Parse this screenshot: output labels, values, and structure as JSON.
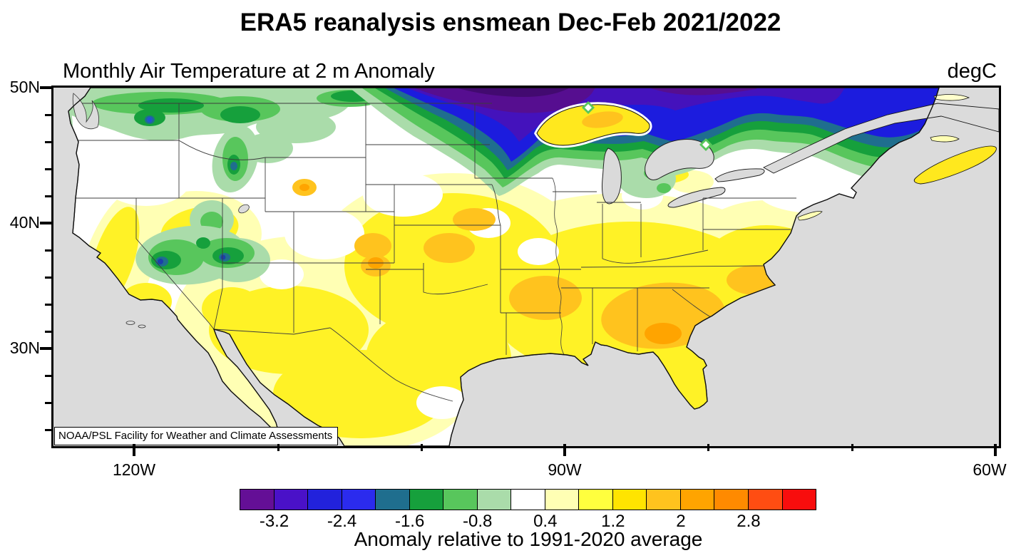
{
  "header": {
    "title": "ERA5 reanalysis ensmean Dec-Feb 2021/2022",
    "subtitle": "Monthly Air Temperature at 2 m Anomaly",
    "units": "degC"
  },
  "map": {
    "watermark": "NOAA/PSL Facility for Weather and Climate Assessments",
    "ocean_color": "#DBDBDB",
    "land_neutral_color": "#FFFFFF"
  },
  "axes": {
    "lat_ticks": [
      "50N",
      "40N",
      "30N"
    ],
    "lon_ticks": [
      "120W",
      "90W",
      "60W"
    ]
  },
  "colorbar": {
    "tick_labels": [
      "-3.2",
      "-2.4",
      "-1.6",
      "-0.8",
      "0.4",
      "1.2",
      "2",
      "2.8"
    ],
    "levels": [
      -3.6,
      -3.2,
      -2.8,
      -2.4,
      -2.0,
      -1.6,
      -1.2,
      -0.8,
      -0.4,
      0.4,
      0.8,
      1.2,
      1.6,
      2.0,
      2.4,
      2.8,
      3.2
    ],
    "colors": [
      "#640F96",
      "#4A11C8",
      "#2222DC",
      "#2B2BEE",
      "#1F6E8E",
      "#16A03C",
      "#58C65C",
      "#AADCAA",
      "#FFFFFF",
      "#FFFFB4",
      "#FFFF3E",
      "#FFE400",
      "#FFC31E",
      "#FFA400",
      "#FF8A00",
      "#FF4D12",
      "#F80D0D"
    ]
  },
  "caption": "Anomaly relative to 1991-2020 average",
  "chart_data": {
    "type": "heatmap",
    "subtype": "filled-contour anomaly map over North America (contiguous US, southern Canada, northern Mexico)",
    "title": "ERA5 reanalysis ensmean Dec-Feb 2021/2022",
    "variable": "Monthly Air Temperature at 2 m Anomaly",
    "units": "degC",
    "baseline": "Anomaly relative to 1991-2020 average",
    "xlabel": "longitude",
    "ylabel": "latitude",
    "x_tick_labels": [
      "120W",
      "90W",
      "60W"
    ],
    "y_tick_labels": [
      "50N",
      "40N",
      "30N"
    ],
    "x_range_deg": [
      -126.0,
      -60.0
    ],
    "y_range_deg": [
      22.0,
      50.2
    ],
    "grid": false,
    "legend_position": "bottom colorbar",
    "contour_interval_degC": 0.4,
    "colorbar_levels": [
      -3.6,
      -3.2,
      -2.8,
      -2.4,
      -2.0,
      -1.6,
      -1.2,
      -0.8,
      -0.4,
      0.4,
      0.8,
      1.2,
      1.6,
      2.0,
      2.4,
      2.8,
      3.2
    ],
    "colorbar_labeled_ticks": [
      -3.2,
      -2.4,
      -1.6,
      -0.8,
      0.4,
      1.2,
      2,
      2.8
    ],
    "regions": [
      {
        "region": "Southern Canada north of Great Lakes (Ontario/Quebec/Manitoba)",
        "anomaly_degC": -3.0
      },
      {
        "region": "Deep purple core along top edge near Lake Superior north shore",
        "anomaly_degC": -3.4
      },
      {
        "region": "Northern Minnesota / northern Wisconsin dip of cold air",
        "anomaly_degC": -2.0
      },
      {
        "region": "US-Canada border band: Washington, Idaho, Montana, North Dakota",
        "anomaly_degC": -1.0
      },
      {
        "region": "Nevada / Great Basin green blob with teal-blue cores",
        "anomaly_degC": -1.6
      },
      {
        "region": "Pacific Northwest interior and New England",
        "anomaly_degC": 0.0
      },
      {
        "region": "California coast and Oregon interior",
        "anomaly_degC": 0.8
      },
      {
        "region": "Central/southern plains, Texas, Mexico, Midwest",
        "anomaly_degC": 1.0
      },
      {
        "region": "Colorado / Kansas / Nebraska warm spots",
        "anomaly_degC": 1.8
      },
      {
        "region": "Lower Mississippi valley (Arkansas)",
        "anomaly_degC": 1.8
      },
      {
        "region": "Southeast: Alabama, Georgia, South Carolina",
        "anomaly_degC": 2.0
      },
      {
        "region": "Central Georgia orange core",
        "anomaly_degC": 2.2
      },
      {
        "region": "Lake Superior surface (warm anomaly over lake)",
        "anomaly_degC": 1.6
      },
      {
        "region": "Virginia / North Carolina coast",
        "anomaly_degC": 1.6
      },
      {
        "region": "Florida peninsula and Nova Scotia",
        "anomaly_degC": 1.0
      }
    ]
  }
}
